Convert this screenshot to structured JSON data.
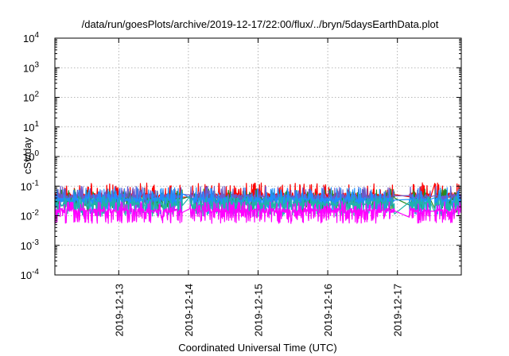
{
  "chart_data": {
    "type": "line",
    "title": "/data/run/goesPlots/archive/2019-12-17/22:00/flux/../bryn/5daysEarthData.plot",
    "xlabel": "Coordinated Universal Time (UTC)",
    "ylabel": "cSv/day",
    "yscale": "log",
    "ylim": [
      0.0001,
      10000
    ],
    "y_ticks": [
      {
        "base": "10",
        "exp": "-4",
        "value": 0.0001
      },
      {
        "base": "10",
        "exp": "-3",
        "value": 0.001
      },
      {
        "base": "10",
        "exp": "-2",
        "value": 0.01
      },
      {
        "base": "10",
        "exp": "-1",
        "value": 0.1
      },
      {
        "base": "10",
        "exp": "0",
        "value": 1
      },
      {
        "base": "10",
        "exp": "1",
        "value": 10
      },
      {
        "base": "10",
        "exp": "2",
        "value": 100
      },
      {
        "base": "10",
        "exp": "3",
        "value": 1000
      },
      {
        "base": "10",
        "exp": "4",
        "value": 10000
      }
    ],
    "xlim": [
      "2019-12-12 02:00",
      "2019-12-17 22:00"
    ],
    "x_ticks": [
      "2019-12-13",
      "2019-12-14",
      "2019-12-15",
      "2019-12-16",
      "2019-12-17"
    ],
    "grid": true,
    "gaps": [
      {
        "start": "2019-12-13 22:00",
        "end": "2019-12-14 00:30"
      },
      {
        "start": "2019-12-16 23:00",
        "end": "2019-12-17 04:00"
      },
      {
        "start": "2019-12-17 11:30",
        "end": "2019-12-17 12:45"
      }
    ],
    "series": [
      {
        "color": "#ff0000",
        "baseline": 0.05,
        "spike_max": 0.13,
        "spike_min": 0.035
      },
      {
        "color": "#228b22",
        "baseline": 0.04,
        "spike_max": 0.08,
        "spike_min": 0.013
      },
      {
        "color": "#6a5acd",
        "baseline": 0.045,
        "spike_max": 0.1,
        "spike_min": 0.02
      },
      {
        "color": "#1e90ff",
        "baseline": 0.035,
        "spike_max": 0.09,
        "spike_min": 0.011
      },
      {
        "color": "#20b2aa",
        "baseline": 0.025,
        "spike_max": 0.045,
        "spike_min": 0.0095
      },
      {
        "color": "#ff00ff",
        "baseline": 0.015,
        "spike_max": 0.03,
        "spike_min": 0.0055
      }
    ]
  }
}
